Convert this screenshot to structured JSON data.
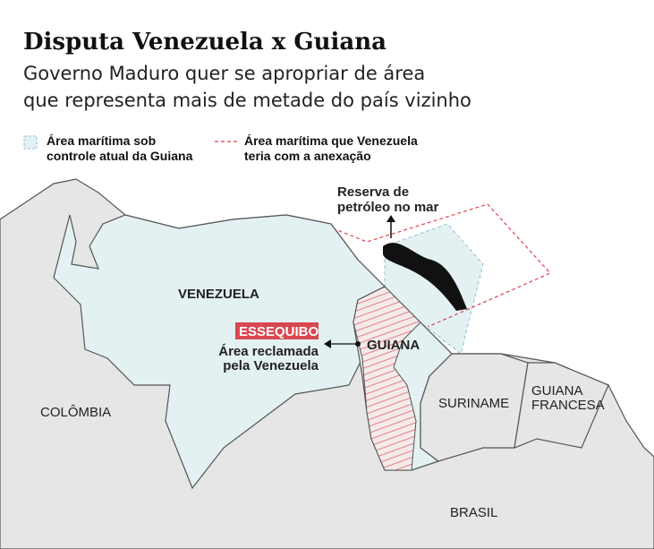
{
  "header": {
    "title": "Disputa Venezuela x Guiana",
    "subtitle_lines": [
      "Governo Maduro quer se apropriar de área",
      "que representa mais de metade do país vizinho"
    ]
  },
  "legend": [
    {
      "lines": [
        "Área marítima sob",
        "controle atual da Guiana"
      ]
    },
    {
      "lines": [
        "Área marítima que Venezuela",
        "teria com a anexação"
      ]
    }
  ],
  "labels": {
    "oil": [
      "Reserva de",
      "petróleo no mar"
    ],
    "venezuela": "VENEZUELA",
    "essequibo": "ESSEQUIBO",
    "claimed": [
      "Área reclamada",
      "pela Venezuela"
    ],
    "guiana": "GUIANA",
    "colombia": "COLÔMBIA",
    "suriname": "SURINAME",
    "french_guiana": [
      "GUIANA",
      "FRANCESA"
    ],
    "brasil": "BRASIL"
  }
}
